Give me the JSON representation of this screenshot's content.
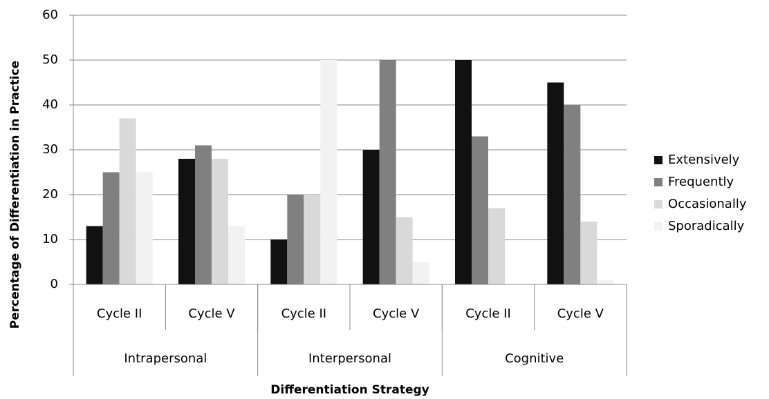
{
  "chart_data": {
    "type": "bar",
    "y_label": "Percentage of Differentiation in Practice",
    "x_label": "Differentiation Strategy",
    "groups": [
      {
        "label": "Intrapersonal",
        "categories": [
          "Cycle II",
          "Cycle V"
        ]
      },
      {
        "label": "Interpersonal",
        "categories": [
          "Cycle II",
          "Cycle V"
        ]
      },
      {
        "label": "Cognitive",
        "categories": [
          "Cycle II",
          "Cycle V"
        ]
      }
    ],
    "series": [
      {
        "name": "Extensively",
        "color": "#111111",
        "values": [
          13,
          28,
          10,
          30,
          50,
          45
        ]
      },
      {
        "name": "Frequently",
        "color": "#808080",
        "values": [
          25,
          31,
          20,
          50,
          33,
          40
        ]
      },
      {
        "name": "Occasionally",
        "color": "#d9d9d9",
        "values": [
          37,
          28,
          20,
          15,
          17,
          14
        ]
      },
      {
        "name": "Sporadically",
        "color": "#f2f2f2",
        "values": [
          25,
          13,
          50,
          5,
          0,
          1
        ]
      }
    ],
    "ylim": [
      0,
      60
    ],
    "yticks": [
      0,
      10,
      20,
      30,
      40,
      50,
      60
    ],
    "grid": true,
    "legend": "right"
  }
}
